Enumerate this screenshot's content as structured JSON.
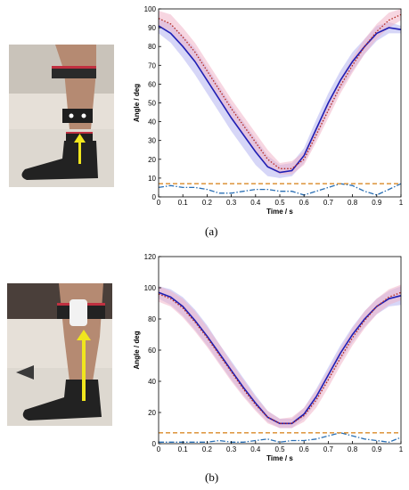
{
  "panels": [
    {
      "sub_label": "(a)",
      "photo": {
        "name": "leg-photo-a"
      }
    },
    {
      "sub_label": "(b)",
      "photo": {
        "name": "leg-photo-b"
      }
    }
  ],
  "colors": {
    "blue_line": "#1f1fb4",
    "red_dotted": "#b4281e",
    "blue_band": "#b4b4f0",
    "red_band": "#f0b4c8",
    "error_line": "#2a6fb4",
    "threshold": "#d98a28"
  },
  "chart_data": [
    {
      "type": "line",
      "xlabel": "Time / s",
      "ylabel": "Angle / deg",
      "xlim": [
        0,
        1
      ],
      "ylim": [
        0,
        100
      ],
      "xticks": [
        "0",
        "0.1",
        "0.2",
        "0.3",
        "0.4",
        "0.5",
        "0.6",
        "0.7",
        "0.8",
        "0.9",
        "1"
      ],
      "yticks": [
        "0",
        "10",
        "20",
        "30",
        "40",
        "50",
        "60",
        "70",
        "80",
        "90",
        "100"
      ],
      "grid": false,
      "x": [
        0,
        0.05,
        0.1,
        0.15,
        0.2,
        0.25,
        0.3,
        0.35,
        0.4,
        0.45,
        0.5,
        0.55,
        0.6,
        0.65,
        0.7,
        0.75,
        0.8,
        0.85,
        0.9,
        0.95,
        1
      ],
      "series": [
        {
          "style": "solid",
          "color": "blue",
          "values": [
            91,
            87,
            80,
            72,
            62,
            52,
            42,
            33,
            24,
            16,
            13,
            14,
            22,
            36,
            50,
            62,
            72,
            80,
            87,
            90,
            89
          ],
          "band_lower": [
            87,
            82,
            74,
            65,
            55,
            45,
            35,
            26,
            17,
            11,
            10,
            11,
            18,
            31,
            45,
            57,
            67,
            76,
            83,
            87,
            87
          ],
          "band_upper": [
            95,
            92,
            86,
            79,
            69,
            59,
            49,
            40,
            31,
            22,
            17,
            18,
            26,
            41,
            55,
            67,
            77,
            84,
            91,
            93,
            91
          ]
        },
        {
          "style": "dotted",
          "color": "red",
          "values": [
            95,
            92,
            85,
            77,
            67,
            57,
            47,
            38,
            29,
            20,
            15,
            15,
            20,
            33,
            46,
            59,
            70,
            80,
            88,
            94,
            97
          ],
          "band_lower": [
            91,
            88,
            80,
            72,
            62,
            52,
            42,
            33,
            24,
            16,
            12,
            12,
            17,
            29,
            42,
            55,
            66,
            76,
            84,
            90,
            94
          ],
          "band_upper": [
            99,
            97,
            90,
            82,
            72,
            62,
            52,
            43,
            34,
            25,
            18,
            19,
            24,
            37,
            50,
            63,
            74,
            84,
            92,
            98,
            100
          ]
        },
        {
          "style": "dashdot",
          "color": "blue",
          "values": [
            5,
            6,
            5,
            5,
            4,
            2,
            2,
            3,
            4,
            4,
            3,
            3,
            1,
            3,
            5,
            7,
            6,
            3,
            1,
            4,
            7
          ]
        },
        {
          "style": "dashed",
          "color": "orange",
          "values": [
            7,
            7,
            7,
            7,
            7,
            7,
            7,
            7,
            7,
            7,
            7,
            7,
            7,
            7,
            7,
            7,
            7,
            7,
            7,
            7,
            7
          ]
        }
      ]
    },
    {
      "type": "line",
      "xlabel": "Time / s",
      "ylabel": "Angle / deg",
      "xlim": [
        0,
        1
      ],
      "ylim": [
        0,
        120
      ],
      "xticks": [
        "0",
        "0.1",
        "0.2",
        "0.3",
        "0.4",
        "0.5",
        "0.6",
        "0.7",
        "0.8",
        "0.9",
        "1"
      ],
      "yticks": [
        "0",
        "20",
        "40",
        "60",
        "80",
        "100",
        "120"
      ],
      "grid": false,
      "x": [
        0,
        0.05,
        0.1,
        0.15,
        0.2,
        0.25,
        0.3,
        0.35,
        0.4,
        0.45,
        0.5,
        0.55,
        0.6,
        0.65,
        0.7,
        0.75,
        0.8,
        0.85,
        0.9,
        0.95,
        1
      ],
      "series": [
        {
          "style": "solid",
          "color": "blue",
          "values": [
            97,
            94,
            88,
            79,
            69,
            58,
            47,
            36,
            26,
            17,
            13,
            13,
            19,
            30,
            44,
            58,
            70,
            80,
            88,
            93,
            95
          ],
          "band_lower": [
            93,
            89,
            82,
            73,
            63,
            52,
            41,
            31,
            22,
            14,
            10,
            10,
            16,
            26,
            40,
            53,
            65,
            75,
            83,
            88,
            89
          ],
          "band_upper": [
            101,
            99,
            94,
            86,
            76,
            64,
            53,
            42,
            31,
            21,
            16,
            16,
            23,
            35,
            49,
            63,
            75,
            85,
            93,
            98,
            101
          ]
        },
        {
          "style": "dotted",
          "color": "red",
          "values": [
            96,
            93,
            87,
            78,
            68,
            57,
            46,
            35,
            25,
            17,
            13,
            13,
            18,
            28,
            41,
            55,
            68,
            79,
            88,
            94,
            97
          ],
          "band_lower": [
            91,
            88,
            81,
            72,
            62,
            51,
            40,
            30,
            21,
            13,
            10,
            10,
            14,
            23,
            36,
            50,
            63,
            74,
            83,
            89,
            92
          ],
          "band_upper": [
            101,
            98,
            93,
            85,
            75,
            64,
            52,
            41,
            30,
            21,
            16,
            17,
            23,
            34,
            47,
            61,
            74,
            85,
            93,
            99,
            102
          ]
        },
        {
          "style": "dashdot",
          "color": "blue",
          "values": [
            1,
            1,
            1,
            1,
            1,
            2,
            1,
            1,
            2,
            3,
            1,
            2,
            2,
            3,
            5,
            7,
            5,
            3,
            2,
            1,
            4
          ]
        },
        {
          "style": "dashed",
          "color": "orange",
          "values": [
            7,
            7,
            7,
            7,
            7,
            7,
            7,
            7,
            7,
            7,
            7,
            7,
            7,
            7,
            7,
            7,
            7,
            7,
            7,
            7,
            7
          ]
        }
      ]
    }
  ]
}
